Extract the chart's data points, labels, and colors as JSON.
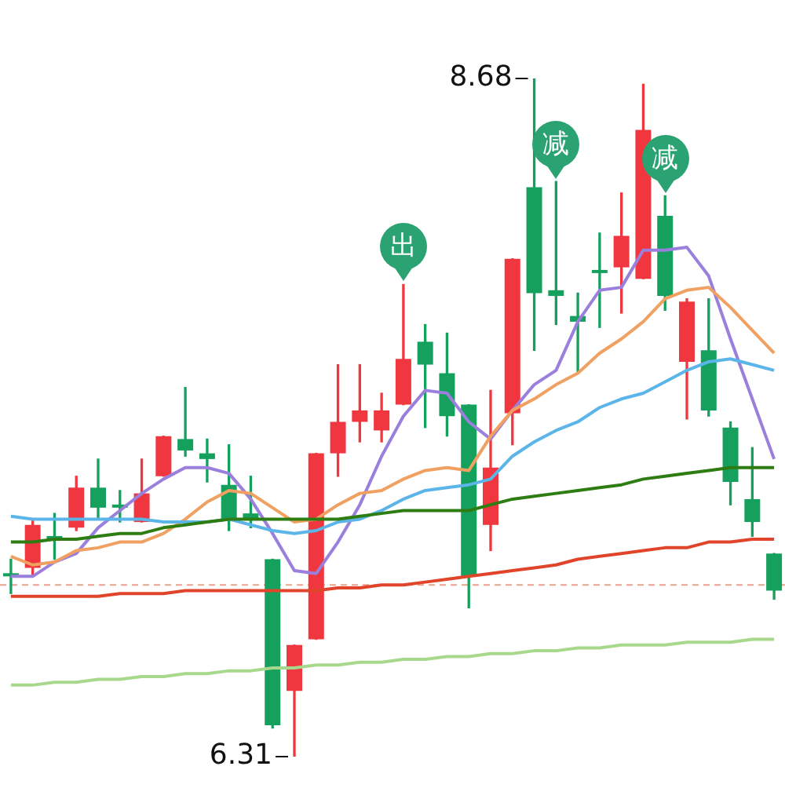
{
  "chart_data": {
    "type": "candlestick",
    "tick_labels": false,
    "legend": false,
    "grid": false,
    "categories": [
      null,
      null,
      null,
      null,
      null,
      null,
      null,
      null,
      null,
      null,
      null,
      null,
      null,
      null,
      null,
      null,
      null,
      null,
      null,
      null,
      null,
      null,
      null,
      null,
      null,
      null,
      null,
      null,
      null,
      null,
      null,
      null,
      null,
      null,
      null,
      null
    ],
    "ohlc": [
      [
        6.95,
        7.0,
        6.88,
        6.94
      ],
      [
        6.97,
        7.14,
        6.94,
        7.12
      ],
      [
        7.08,
        7.16,
        7.0,
        7.07
      ],
      [
        7.11,
        7.29,
        7.1,
        7.25
      ],
      [
        7.25,
        7.35,
        7.14,
        7.18
      ],
      [
        7.19,
        7.24,
        7.13,
        7.18
      ],
      [
        7.13,
        7.35,
        7.13,
        7.23
      ],
      [
        7.29,
        7.43,
        7.29,
        7.43
      ],
      [
        7.42,
        7.6,
        7.36,
        7.38
      ],
      [
        7.37,
        7.42,
        7.27,
        7.35
      ],
      [
        7.26,
        7.4,
        7.1,
        7.14
      ],
      [
        7.16,
        7.29,
        7.11,
        7.14
      ],
      [
        7.0,
        7.0,
        6.41,
        6.42
      ],
      [
        6.54,
        6.7,
        6.31,
        6.7
      ],
      [
        6.72,
        7.37,
        6.72,
        7.37
      ],
      [
        7.37,
        7.68,
        7.29,
        7.48
      ],
      [
        7.48,
        7.68,
        7.41,
        7.52
      ],
      [
        7.45,
        7.58,
        7.41,
        7.52
      ],
      [
        7.54,
        7.96,
        7.54,
        7.7
      ],
      [
        7.76,
        7.82,
        7.46,
        7.68
      ],
      [
        7.65,
        7.79,
        7.43,
        7.5
      ],
      [
        7.54,
        7.54,
        6.83,
        6.94
      ],
      [
        7.12,
        7.59,
        7.03,
        7.32
      ],
      [
        7.51,
        8.05,
        7.4,
        8.05
      ],
      [
        8.3,
        8.68,
        7.73,
        7.93
      ],
      [
        7.94,
        8.32,
        7.82,
        7.92
      ],
      [
        7.85,
        7.93,
        7.65,
        7.83
      ],
      [
        8.01,
        8.14,
        7.81,
        8.0
      ],
      [
        8.02,
        8.28,
        7.86,
        8.13
      ],
      [
        7.98,
        8.66,
        7.98,
        8.5
      ],
      [
        8.2,
        8.27,
        7.87,
        7.92
      ],
      [
        7.69,
        7.91,
        7.49,
        7.9
      ],
      [
        7.73,
        7.91,
        7.5,
        7.52
      ],
      [
        7.46,
        7.48,
        7.19,
        7.27
      ],
      [
        7.21,
        7.39,
        7.08,
        7.13
      ],
      [
        7.02,
        7.02,
        6.86,
        6.89
      ]
    ],
    "colors": [
      "#16a05d",
      "#f0363f",
      "#16a05d",
      "#f0363f",
      "#16a05d",
      "#16a05d",
      "#f0363f",
      "#f0363f",
      "#16a05d",
      "#16a05d",
      "#16a05d",
      "#16a05d",
      "#16a05d",
      "#f0363f",
      "#f0363f",
      "#f0363f",
      "#f0363f",
      "#f0363f",
      "#f0363f",
      "#16a05d",
      "#16a05d",
      "#16a05d",
      "#f0363f",
      "#f0363f",
      "#16a05d",
      "#16a05d",
      "#16a05d",
      "#16a05d",
      "#f0363f",
      "#f0363f",
      "#16a05d",
      "#f0363f",
      "#16a05d",
      "#16a05d",
      "#16a05d",
      "#16a05d"
    ],
    "series": [
      {
        "type": "line",
        "color": "#a8d88c",
        "values": [
          6.56,
          6.56,
          6.57,
          6.57,
          6.58,
          6.58,
          6.59,
          6.59,
          6.6,
          6.6,
          6.61,
          6.61,
          6.62,
          6.62,
          6.63,
          6.63,
          6.64,
          6.64,
          6.65,
          6.65,
          6.66,
          6.66,
          6.67,
          6.67,
          6.68,
          6.68,
          6.69,
          6.69,
          6.7,
          6.7,
          6.7,
          6.71,
          6.71,
          6.71,
          6.72,
          6.72
        ]
      },
      {
        "type": "line",
        "color": "#e0442a",
        "values": [
          6.87,
          6.87,
          6.87,
          6.87,
          6.87,
          6.88,
          6.88,
          6.88,
          6.89,
          6.89,
          6.89,
          6.89,
          6.89,
          6.89,
          6.89,
          6.9,
          6.9,
          6.91,
          6.91,
          6.92,
          6.93,
          6.94,
          6.95,
          6.96,
          6.97,
          6.98,
          7.0,
          7.01,
          7.02,
          7.03,
          7.04,
          7.04,
          7.06,
          7.06,
          7.07,
          7.07
        ]
      },
      {
        "type": "line",
        "color": "#2e7d12",
        "values": [
          7.06,
          7.06,
          7.07,
          7.07,
          7.08,
          7.09,
          7.09,
          7.11,
          7.12,
          7.13,
          7.14,
          7.14,
          7.14,
          7.14,
          7.14,
          7.14,
          7.15,
          7.16,
          7.17,
          7.17,
          7.17,
          7.17,
          7.19,
          7.21,
          7.22,
          7.23,
          7.24,
          7.25,
          7.26,
          7.28,
          7.29,
          7.3,
          7.31,
          7.32,
          7.32,
          7.32
        ]
      },
      {
        "type": "line",
        "color": "#5bb5e8",
        "values": [
          7.15,
          7.14,
          7.14,
          7.14,
          7.14,
          7.14,
          7.14,
          7.13,
          7.13,
          7.13,
          7.14,
          7.12,
          7.1,
          7.09,
          7.1,
          7.13,
          7.14,
          7.17,
          7.21,
          7.24,
          7.25,
          7.26,
          7.28,
          7.36,
          7.41,
          7.45,
          7.48,
          7.53,
          7.56,
          7.58,
          7.62,
          7.66,
          7.69,
          7.7,
          7.68,
          7.66
        ]
      },
      {
        "type": "line",
        "color": "#f0a060",
        "values": [
          7.01,
          6.98,
          6.99,
          7.03,
          7.04,
          7.06,
          7.06,
          7.09,
          7.14,
          7.2,
          7.24,
          7.23,
          7.18,
          7.13,
          7.14,
          7.19,
          7.23,
          7.24,
          7.28,
          7.31,
          7.32,
          7.31,
          7.43,
          7.52,
          7.56,
          7.61,
          7.65,
          7.72,
          7.77,
          7.83,
          7.91,
          7.94,
          7.95,
          7.88,
          7.8,
          7.72
        ]
      },
      {
        "type": "line",
        "color": "#9b7fdc",
        "values": [
          6.94,
          6.94,
          6.99,
          7.02,
          7.11,
          7.17,
          7.23,
          7.28,
          7.32,
          7.32,
          7.3,
          7.21,
          7.09,
          6.96,
          6.95,
          7.06,
          7.19,
          7.36,
          7.5,
          7.59,
          7.58,
          7.48,
          7.42,
          7.52,
          7.61,
          7.66,
          7.83,
          7.94,
          7.95,
          8.08,
          8.08,
          8.09,
          7.99,
          7.77,
          7.56,
          7.35
        ]
      }
    ],
    "ref_lines": [
      {
        "axis": "y",
        "value": 6.91,
        "color": "#e8a48c",
        "line_style": "dashed"
      }
    ],
    "annotations": [
      "8.68",
      "6.31",
      {
        "text": "出",
        "y": 7.96
      },
      {
        "text": "减",
        "y": 8.32
      },
      {
        "text": "减",
        "y": 8.27
      }
    ]
  }
}
